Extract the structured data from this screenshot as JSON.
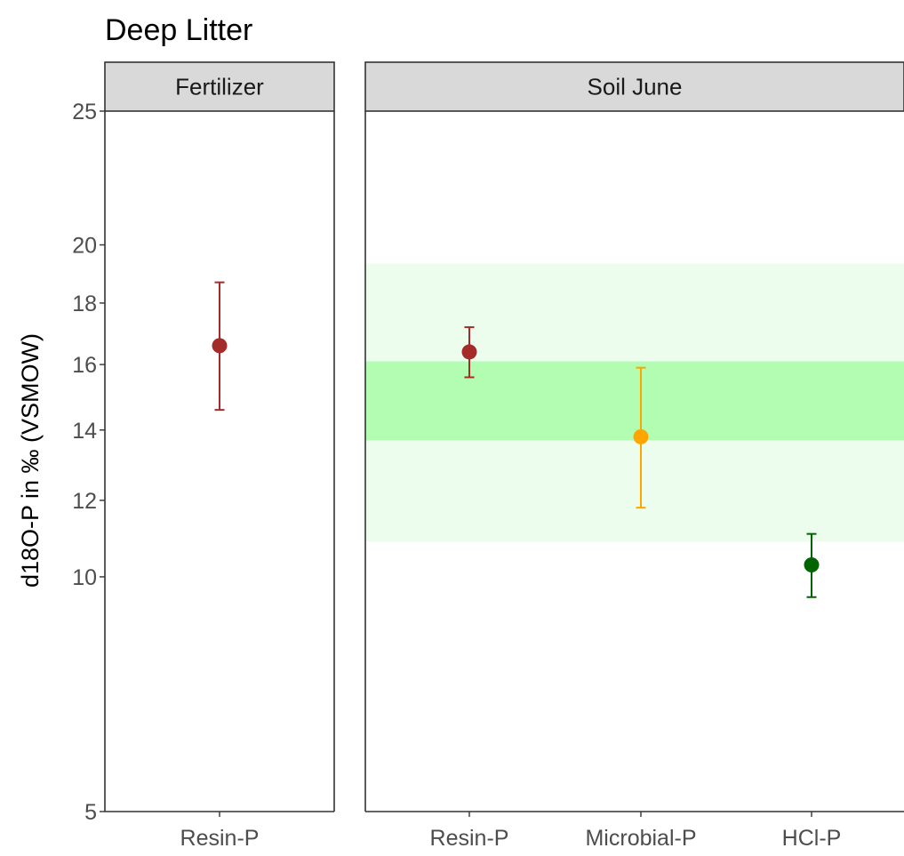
{
  "chart_data": {
    "type": "scatter",
    "title": "Deep Litter",
    "ylabel": "d18O-P in ‰ (VSMOW)",
    "ylim": [
      5,
      25
    ],
    "yticks": [
      5,
      10,
      12,
      14,
      16,
      18,
      20,
      25
    ],
    "grid": false,
    "colors": {
      "Resin-P": "#a52a2a",
      "Microbial-P": "#ffa500",
      "HCl-P": "#006400",
      "band_outer": "#edfded",
      "band_inner": "#b3fdb3",
      "strip_fill": "#d9d9d9"
    },
    "bands": [
      {
        "facet": "Soil June",
        "ymin": 10.9,
        "ymax": 19.35,
        "color": "#edfded"
      },
      {
        "facet": "Soil June",
        "ymin": 13.7,
        "ymax": 16.1,
        "color": "#b3fdb3"
      }
    ],
    "facets": [
      {
        "name": "Fertilizer",
        "categories": [
          "Resin-P"
        ],
        "points": [
          {
            "category": "Resin-P",
            "y": 16.6,
            "ymin": 14.6,
            "ymax": 18.7
          }
        ]
      },
      {
        "name": "Soil June",
        "categories": [
          "Resin-P",
          "Microbial-P",
          "HCl-P"
        ],
        "points": [
          {
            "category": "Resin-P",
            "y": 16.4,
            "ymin": 15.6,
            "ymax": 17.2
          },
          {
            "category": "Microbial-P",
            "y": 13.8,
            "ymin": 11.8,
            "ymax": 15.9
          },
          {
            "category": "HCl-P",
            "y": 10.3,
            "ymin": 9.5,
            "ymax": 11.1
          }
        ]
      }
    ]
  }
}
